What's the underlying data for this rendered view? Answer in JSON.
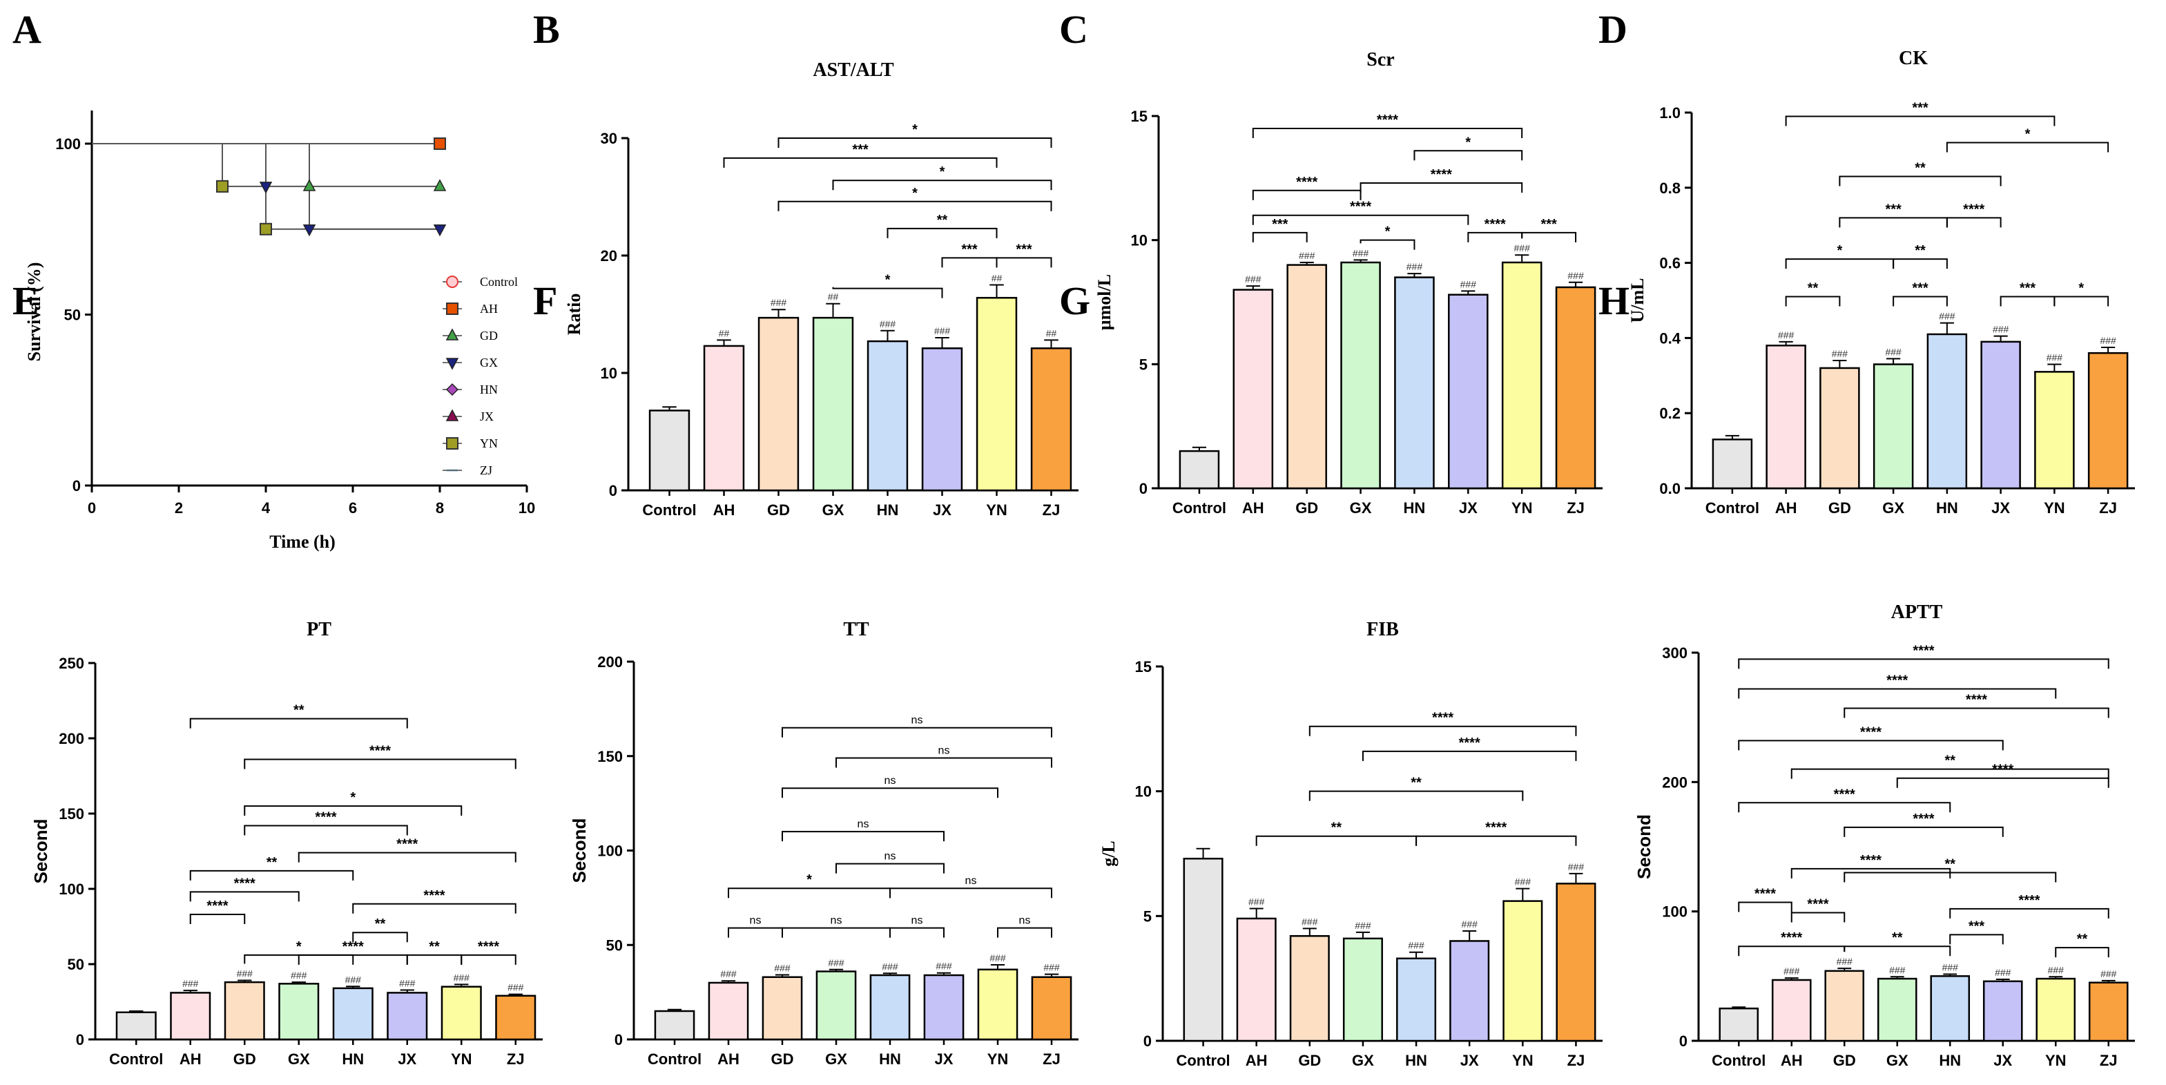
{
  "colors": {
    "Control": "#e6e6e6",
    "AH": "#fde1e4",
    "GD": "#fde0c4",
    "GX": "#cff8cf",
    "HN": "#c8ddf8",
    "JX": "#c5c2f7",
    "YN": "#fcfca0",
    "ZJ": "#f9a03f",
    "axis": "#000000"
  },
  "chart_data": [
    {
      "panel": "A",
      "type": "line",
      "title": "",
      "xlabel": "Time (h)",
      "ylabel": "Survival (%)",
      "xlim": [
        0,
        10
      ],
      "ylim": [
        0,
        100
      ],
      "xticks": [
        0,
        2,
        4,
        6,
        8,
        10
      ],
      "yticks": [
        0,
        50,
        100
      ],
      "series": [
        {
          "name": "Control",
          "color": "#e53935",
          "marker": "circle",
          "steps": [
            [
              0,
              100
            ],
            [
              8,
              100
            ]
          ],
          "end_marker": [
            8,
            100
          ]
        },
        {
          "name": "AH",
          "color": "#e65100",
          "marker": "square",
          "steps": [
            [
              0,
              100
            ],
            [
              8,
              100
            ]
          ],
          "end_marker": [
            8,
            100
          ]
        },
        {
          "name": "GD",
          "color": "#43a047",
          "marker": "triangle",
          "steps": [
            [
              0,
              100
            ],
            [
              5,
              100
            ],
            [
              5,
              87.5
            ],
            [
              8,
              87.5
            ]
          ],
          "markers": [
            [
              5,
              87.5
            ],
            [
              8,
              87.5
            ]
          ]
        },
        {
          "name": "GX",
          "color": "#1a237e",
          "marker": "triangle-down",
          "steps": [
            [
              0,
              100
            ],
            [
              4,
              100
            ],
            [
              4,
              87.5
            ],
            [
              5,
              87.5
            ],
            [
              5,
              75
            ],
            [
              8,
              75
            ]
          ],
          "markers": [
            [
              4,
              87.5
            ],
            [
              5,
              75
            ],
            [
              8,
              75
            ]
          ]
        },
        {
          "name": "HN",
          "color": "#ab47bc",
          "marker": "diamond",
          "steps": [],
          "markers": []
        },
        {
          "name": "JX",
          "color": "#880e4f",
          "marker": "triangle",
          "steps": [],
          "markers": []
        },
        {
          "name": "YN",
          "color": "#9e9d24",
          "marker": "square",
          "steps": [
            [
              0,
              100
            ],
            [
              3,
              100
            ],
            [
              3,
              87.5
            ],
            [
              4,
              87.5
            ],
            [
              4,
              75
            ],
            [
              8,
              75
            ]
          ],
          "markers": [
            [
              3,
              87.5
            ],
            [
              4,
              75
            ]
          ]
        },
        {
          "name": "ZJ",
          "color": "#546e7a",
          "marker": "line",
          "steps": [],
          "markers": []
        }
      ]
    },
    {
      "panel": "B",
      "type": "bar",
      "title": "AST/ALT",
      "xlabel": "",
      "ylabel": "Ratio",
      "ylim": [
        0,
        30
      ],
      "yticks": [
        0,
        10,
        20,
        30
      ],
      "categories": [
        "Control",
        "AH",
        "GD",
        "GX",
        "HN",
        "JX",
        "YN",
        "ZJ"
      ],
      "values": [
        6.8,
        12.3,
        14.7,
        14.7,
        12.7,
        12.1,
        16.4,
        12.1
      ],
      "errors": [
        0.3,
        0.5,
        0.7,
        1.2,
        0.9,
        0.9,
        1.1,
        0.7
      ],
      "marks": [
        "",
        "##",
        "###",
        "##",
        "###",
        "###",
        "##",
        "##"
      ],
      "comparisons": [
        {
          "a": 2,
          "b": 7,
          "label": "*",
          "y": 30
        },
        {
          "a": 1,
          "b": 6,
          "label": "***",
          "y": 28.3
        },
        {
          "a": 3,
          "b": 7,
          "label": "*",
          "y": 26.4
        },
        {
          "a": 2,
          "b": 7,
          "label": "*",
          "y": 24.6
        },
        {
          "a": 4,
          "b": 6,
          "label": "**",
          "y": 22.3
        },
        {
          "a": 6,
          "b": 7,
          "label": "***",
          "y": 19.8
        },
        {
          "a": 5,
          "b": 6,
          "label": "***",
          "y": 19.8
        },
        {
          "a": 3,
          "b": 5,
          "label": "*",
          "y": 17.2
        }
      ]
    },
    {
      "panel": "C",
      "type": "bar",
      "title": "Scr",
      "xlabel": "",
      "ylabel": "μmol/L",
      "ylim": [
        0,
        15
      ],
      "yticks": [
        0,
        5,
        10,
        15
      ],
      "categories": [
        "Control",
        "AH",
        "GD",
        "GX",
        "HN",
        "JX",
        "YN",
        "ZJ"
      ],
      "values": [
        1.5,
        8.0,
        9.0,
        9.1,
        8.5,
        7.8,
        9.1,
        8.1
      ],
      "errors": [
        0.15,
        0.15,
        0.1,
        0.1,
        0.15,
        0.15,
        0.3,
        0.2
      ],
      "marks": [
        "",
        "###",
        "###",
        "###",
        "###",
        "###",
        "###",
        "###"
      ],
      "comparisons": [
        {
          "a": 1,
          "b": 6,
          "label": "****",
          "y": 14.5
        },
        {
          "a": 4,
          "b": 6,
          "label": "*",
          "y": 13.6
        },
        {
          "a": 3,
          "b": 6,
          "label": "****",
          "y": 12.3
        },
        {
          "a": 1,
          "b": 3,
          "label": "****",
          "y": 12.0
        },
        {
          "a": 1,
          "b": 5,
          "label": "****",
          "y": 11.0
        },
        {
          "a": 1,
          "b": 2,
          "label": "***",
          "y": 10.3
        },
        {
          "a": 3,
          "b": 4,
          "label": "*",
          "y": 10.0
        },
        {
          "a": 5,
          "b": 6,
          "label": "****",
          "y": 10.3
        },
        {
          "a": 6,
          "b": 7,
          "label": "***",
          "y": 10.3
        }
      ]
    },
    {
      "panel": "D",
      "type": "bar",
      "title": "CK",
      "xlabel": "",
      "ylabel": "U/mL",
      "ylim": [
        0,
        1.0
      ],
      "yticks": [
        0.0,
        0.2,
        0.4,
        0.6,
        0.8,
        1.0
      ],
      "categories": [
        "Control",
        "AH",
        "GD",
        "GX",
        "HN",
        "JX",
        "YN",
        "ZJ"
      ],
      "values": [
        0.13,
        0.38,
        0.32,
        0.33,
        0.41,
        0.39,
        0.31,
        0.36
      ],
      "errors": [
        0.01,
        0.01,
        0.02,
        0.015,
        0.03,
        0.015,
        0.02,
        0.015
      ],
      "marks": [
        "",
        "###",
        "###",
        "###",
        "###",
        "###",
        "###",
        "###"
      ],
      "comparisons": [
        {
          "a": 1,
          "b": 6,
          "label": "***",
          "y": 0.99
        },
        {
          "a": 4,
          "b": 7,
          "label": "*",
          "y": 0.92
        },
        {
          "a": 2,
          "b": 5,
          "label": "**",
          "y": 0.83
        },
        {
          "a": 2,
          "b": 4,
          "label": "***",
          "y": 0.72
        },
        {
          "a": 4,
          "b": 5,
          "label": "****",
          "y": 0.72
        },
        {
          "a": 1,
          "b": 3,
          "label": "*",
          "y": 0.61
        },
        {
          "a": 3,
          "b": 4,
          "label": "**",
          "y": 0.61
        },
        {
          "a": 1,
          "b": 2,
          "label": "**",
          "y": 0.51
        },
        {
          "a": 3,
          "b": 4,
          "label": "***",
          "y": 0.51
        },
        {
          "a": 5,
          "b": 6,
          "label": "***",
          "y": 0.51
        },
        {
          "a": 6,
          "b": 7,
          "label": "*",
          "y": 0.51
        }
      ]
    },
    {
      "panel": "E",
      "type": "bar",
      "title": "PT",
      "xlabel": "",
      "ylabel": "Second",
      "ylim": [
        0,
        250
      ],
      "yticks": [
        0,
        50,
        100,
        150,
        200,
        250
      ],
      "categories": [
        "Control",
        "AH",
        "GD",
        "GX",
        "HN",
        "JX",
        "YN",
        "ZJ"
      ],
      "values": [
        18,
        31,
        38,
        37,
        34,
        31,
        35,
        29
      ],
      "errors": [
        0.8,
        1.5,
        1.2,
        1.0,
        1.2,
        1.8,
        1.5,
        1.0
      ],
      "marks": [
        "",
        "###",
        "###",
        "###",
        "###",
        "###",
        "###",
        "###"
      ],
      "comparisons": [
        {
          "a": 1,
          "b": 5,
          "label": "**",
          "y": 213
        },
        {
          "a": 2,
          "b": 7,
          "label": "****",
          "y": 186
        },
        {
          "a": 2,
          "b": 6,
          "label": "*",
          "y": 155
        },
        {
          "a": 2,
          "b": 5,
          "label": "****",
          "y": 142
        },
        {
          "a": 3,
          "b": 7,
          "label": "****",
          "y": 124
        },
        {
          "a": 1,
          "b": 4,
          "label": "**",
          "y": 112
        },
        {
          "a": 1,
          "b": 3,
          "label": "****",
          "y": 98
        },
        {
          "a": 4,
          "b": 7,
          "label": "****",
          "y": 90
        },
        {
          "a": 1,
          "b": 2,
          "label": "****",
          "y": 83
        },
        {
          "a": 4,
          "b": 5,
          "label": "**",
          "y": 71
        },
        {
          "a": 2,
          "b": 4,
          "label": "*",
          "y": 56
        },
        {
          "a": 3,
          "b": 5,
          "label": "****",
          "y": 56
        },
        {
          "a": 5,
          "b": 6,
          "label": "**",
          "y": 56
        },
        {
          "a": 6,
          "b": 7,
          "label": "****",
          "y": 56
        }
      ]
    },
    {
      "panel": "F",
      "type": "bar",
      "title": "TT",
      "xlabel": "",
      "ylabel": "Second",
      "ylim": [
        0,
        200
      ],
      "yticks": [
        0,
        50,
        100,
        150,
        200
      ],
      "categories": [
        "Control",
        "AH",
        "GD",
        "GX",
        "HN",
        "JX",
        "YN",
        "ZJ"
      ],
      "values": [
        15,
        30,
        33,
        36,
        34,
        34,
        37,
        33
      ],
      "errors": [
        0.8,
        1.0,
        1.2,
        1.0,
        1.0,
        1.2,
        2.5,
        1.5
      ],
      "marks": [
        "",
        "###",
        "###",
        "###",
        "###",
        "###",
        "###",
        "###"
      ],
      "comparisons": [
        {
          "a": 2,
          "b": 7,
          "label": "ns",
          "y": 165
        },
        {
          "a": 3,
          "b": 7,
          "label": "ns",
          "y": 149
        },
        {
          "a": 2,
          "b": 6,
          "label": "ns",
          "y": 133
        },
        {
          "a": 2,
          "b": 5,
          "label": "ns",
          "y": 110
        },
        {
          "a": 3,
          "b": 5,
          "label": "ns",
          "y": 93
        },
        {
          "a": 1,
          "b": 4,
          "label": "*",
          "y": 80
        },
        {
          "a": 4,
          "b": 7,
          "label": "ns",
          "y": 80
        },
        {
          "a": 1,
          "b": 2,
          "label": "ns",
          "y": 59
        },
        {
          "a": 2,
          "b": 4,
          "label": "ns",
          "y": 59
        },
        {
          "a": 4,
          "b": 5,
          "label": "ns",
          "y": 59
        },
        {
          "a": 6,
          "b": 7,
          "label": "ns",
          "y": 59
        }
      ]
    },
    {
      "panel": "G",
      "type": "bar",
      "title": "FIB",
      "xlabel": "",
      "ylabel": "g/L",
      "ylim": [
        0,
        15
      ],
      "yticks": [
        0,
        5,
        10,
        15
      ],
      "categories": [
        "Control",
        "AH",
        "GD",
        "GX",
        "HN",
        "JX",
        "YN",
        "ZJ"
      ],
      "values": [
        7.3,
        4.9,
        4.2,
        4.1,
        3.3,
        4.0,
        5.6,
        6.3
      ],
      "errors": [
        0.4,
        0.4,
        0.3,
        0.25,
        0.25,
        0.4,
        0.5,
        0.4
      ],
      "marks": [
        "",
        "###",
        "###",
        "###",
        "###",
        "###",
        "###",
        "###"
      ],
      "comparisons": [
        {
          "a": 2,
          "b": 7,
          "label": "****",
          "y": 12.6
        },
        {
          "a": 3,
          "b": 7,
          "label": "****",
          "y": 11.6
        },
        {
          "a": 2,
          "b": 6,
          "label": "**",
          "y": 10.0
        },
        {
          "a": 1,
          "b": 4,
          "label": "**",
          "y": 8.2
        },
        {
          "a": 4,
          "b": 7,
          "label": "****",
          "y": 8.2
        }
      ]
    },
    {
      "panel": "H",
      "type": "bar",
      "title": "APTT",
      "xlabel": "",
      "ylabel": "Second",
      "ylim": [
        0,
        300
      ],
      "yticks": [
        0,
        100,
        200,
        300
      ],
      "categories": [
        "Control",
        "AH",
        "GD",
        "GX",
        "HN",
        "JX",
        "YN",
        "ZJ"
      ],
      "values": [
        25,
        47,
        54,
        48,
        50,
        46,
        48,
        45
      ],
      "errors": [
        1.0,
        1.5,
        2.0,
        1.5,
        1.5,
        1.5,
        1.5,
        1.5
      ],
      "marks": [
        "",
        "###",
        "###",
        "###",
        "###",
        "###",
        "###",
        "###"
      ],
      "comparisons": [
        {
          "a": 0,
          "b": 7,
          "label": "****",
          "y": 295
        },
        {
          "a": 0,
          "b": 6,
          "label": "****",
          "y": 272
        },
        {
          "a": 2,
          "b": 7,
          "label": "****",
          "y": 257
        },
        {
          "a": 0,
          "b": 5,
          "label": "****",
          "y": 232
        },
        {
          "a": 1,
          "b": 7,
          "label": "**",
          "y": 210
        },
        {
          "a": 3,
          "b": 7,
          "label": "****",
          "y": 203
        },
        {
          "a": 0,
          "b": 4,
          "label": "****",
          "y": 184
        },
        {
          "a": 2,
          "b": 5,
          "label": "****",
          "y": 165
        },
        {
          "a": 1,
          "b": 4,
          "label": "****",
          "y": 133
        },
        {
          "a": 2,
          "b": 6,
          "label": "**",
          "y": 130
        },
        {
          "a": 0,
          "b": 1,
          "label": "****",
          "y": 107
        },
        {
          "a": 1,
          "b": 2,
          "label": "****",
          "y": 99
        },
        {
          "a": 4,
          "b": 7,
          "label": "****",
          "y": 102
        },
        {
          "a": 0,
          "b": 2,
          "label": "****",
          "y": 73
        },
        {
          "a": 2,
          "b": 4,
          "label": "**",
          "y": 73
        },
        {
          "a": 4,
          "b": 5,
          "label": "***",
          "y": 82
        },
        {
          "a": 6,
          "b": 7,
          "label": "**",
          "y": 72
        }
      ]
    }
  ]
}
